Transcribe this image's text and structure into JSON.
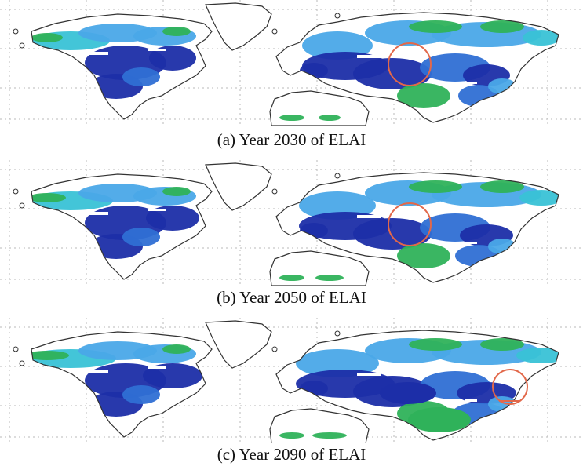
{
  "panels": [
    {
      "id": "a",
      "caption": "(a)  Year 2030 of ELAI",
      "highlight": "central-asia"
    },
    {
      "id": "b",
      "caption": "(b)  Year 2050 of ELAI",
      "highlight": "central-asia"
    },
    {
      "id": "c",
      "caption": "(c)  Year 2090 of ELAI",
      "highlight": "east-asia"
    }
  ],
  "colors": {
    "deep_blue": "#1c2ea8",
    "medium_blue": "#2f6fd4",
    "light_blue": "#4aa8e8",
    "cyan": "#39c2d6",
    "green": "#2fb25a",
    "circle": "#e2684a",
    "coast": "#333333",
    "grid": "#b8b8b8"
  }
}
